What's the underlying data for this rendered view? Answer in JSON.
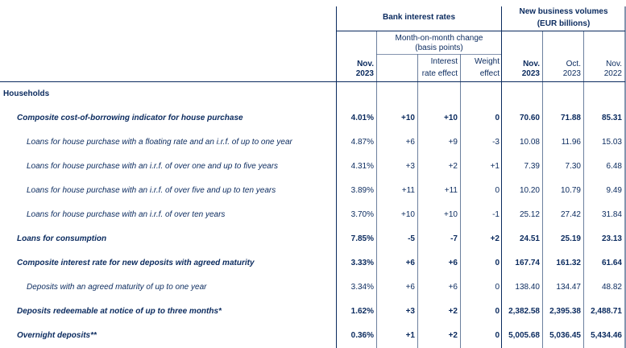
{
  "header": {
    "bank_rates": "Bank interest rates",
    "nbv_line1": "New business volumes",
    "nbv_line2": "(EUR billions)",
    "mom_line1": "Month-on-month change",
    "mom_line2": "(basis points)",
    "col_nov2023_line1": "Nov.",
    "col_nov2023_line2": "2023",
    "col_ir_effect_line1": "Interest",
    "col_ir_effect_line2": "rate effect",
    "col_w_effect_line1": "Weight",
    "col_w_effect_line2": "effect",
    "col_vol_nov2023_line1": "Nov.",
    "col_vol_nov2023_line2": "2023",
    "col_vol_oct2023_line1": "Oct.",
    "col_vol_oct2023_line2": "2023",
    "col_vol_nov2022_line1": "Nov.",
    "col_vol_nov2022_line2": "2022"
  },
  "section_label": "Households",
  "rows": [
    {
      "label": "Composite cost-of-borrowing indicator for house purchase",
      "rate": "4.01%",
      "mom": "+10",
      "ir": "+10",
      "w": "0",
      "v1": "70.60",
      "v2": "71.88",
      "v3": "85.31"
    },
    {
      "label": "Loans for house purchase with a floating rate and an i.r.f. of up to one year",
      "rate": "4.87%",
      "mom": "+6",
      "ir": "+9",
      "w": "-3",
      "v1": "10.08",
      "v2": "11.96",
      "v3": "15.03"
    },
    {
      "label": "Loans for house purchase with an i.r.f. of over one and up to five years",
      "rate": "4.31%",
      "mom": "+3",
      "ir": "+2",
      "w": "+1",
      "v1": "7.39",
      "v2": "7.30",
      "v3": "6.48"
    },
    {
      "label": "Loans for house purchase with an i.r.f. of over five and up to ten years",
      "rate": "3.89%",
      "mom": "+11",
      "ir": "+11",
      "w": "0",
      "v1": "10.20",
      "v2": "10.79",
      "v3": "9.49"
    },
    {
      "label": "Loans for house purchase with an i.r.f. of over ten years",
      "rate": "3.70%",
      "mom": "+10",
      "ir": "+10",
      "w": "-1",
      "v1": "25.12",
      "v2": "27.42",
      "v3": "31.84"
    },
    {
      "label": "Loans for consumption",
      "rate": "7.85%",
      "mom": "-5",
      "ir": "-7",
      "w": "+2",
      "v1": "24.51",
      "v2": "25.19",
      "v3": "23.13"
    },
    {
      "label": "Composite interest rate for new deposits with agreed maturity",
      "rate": "3.33%",
      "mom": "+6",
      "ir": "+6",
      "w": "0",
      "v1": "167.74",
      "v2": "161.32",
      "v3": "61.64"
    },
    {
      "label": "Deposits with an agreed maturity of up to one year",
      "rate": "3.34%",
      "mom": "+6",
      "ir": "+6",
      "w": "0",
      "v1": "138.40",
      "v2": "134.47",
      "v3": "48.82"
    },
    {
      "label": "Deposits redeemable at notice of up to three months*",
      "rate": "1.62%",
      "mom": "+3",
      "ir": "+2",
      "w": "0",
      "v1": "2,382.58",
      "v2": "2,395.38",
      "v3": "2,488.71"
    },
    {
      "label": "Overnight deposits**",
      "rate": "0.36%",
      "mom": "+1",
      "ir": "+2",
      "w": "0",
      "v1": "5,005.68",
      "v2": "5,036.45",
      "v3": "5,434.46"
    }
  ]
}
